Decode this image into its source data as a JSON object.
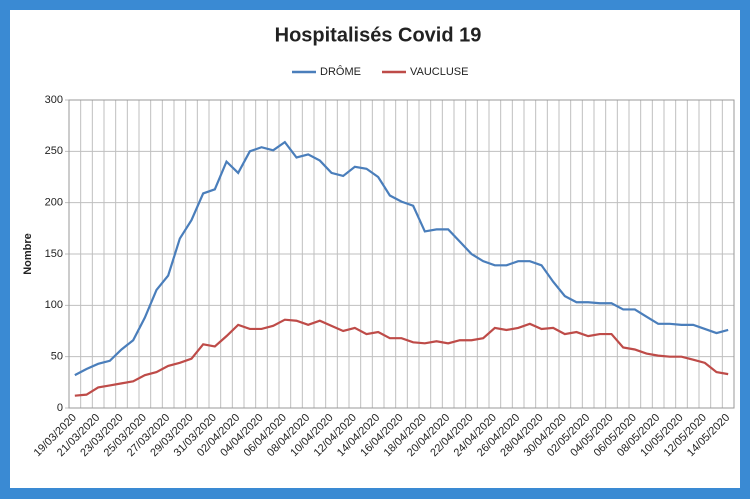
{
  "chart_data": {
    "type": "line",
    "title": "Hospitalisés Covid 19",
    "y_label": "Nombre",
    "categories": [
      "19/03/2020",
      null,
      "21/03/2020",
      null,
      "23/03/2020",
      null,
      "25/03/2020",
      null,
      "27/03/2020",
      null,
      "29/03/2020",
      null,
      "31/03/2020",
      null,
      "02/04/2020",
      null,
      "04/04/2020",
      null,
      "06/04/2020",
      null,
      "08/04/2020",
      null,
      "10/04/2020",
      null,
      "12/04/2020",
      null,
      "14/04/2020",
      null,
      "16/04/2020",
      null,
      "18/04/2020",
      null,
      "20/04/2020",
      null,
      "22/04/2020",
      null,
      "24/04/2020",
      null,
      "26/04/2020",
      null,
      "28/04/2020",
      null,
      "30/04/2020",
      null,
      "02/05/2020",
      null,
      "04/05/2020",
      null,
      "06/05/2020",
      null,
      "08/05/2020",
      null,
      "10/05/2020",
      null,
      "12/05/2020",
      null,
      "14/05/2020"
    ],
    "series": [
      {
        "name": "DRÔME",
        "color": "#4a7ebb",
        "values": [
          32,
          38,
          43,
          46,
          57,
          66,
          88,
          115,
          129,
          165,
          183,
          209,
          213,
          240,
          229,
          250,
          254,
          251,
          259,
          244,
          247,
          241,
          229,
          226,
          235,
          233,
          225,
          207,
          201,
          197,
          172,
          174,
          174,
          162,
          150,
          143,
          139,
          139,
          143,
          143,
          139,
          123,
          109,
          103,
          103,
          102,
          102,
          96,
          96,
          89,
          82,
          82,
          81,
          81,
          77,
          73,
          76
        ]
      },
      {
        "name": "VAUCLUSE",
        "color": "#be4b48",
        "values": [
          12,
          13,
          20,
          22,
          24,
          26,
          32,
          35,
          41,
          44,
          48,
          62,
          60,
          70,
          81,
          77,
          77,
          80,
          86,
          85,
          81,
          85,
          80,
          75,
          78,
          72,
          74,
          68,
          68,
          64,
          63,
          65,
          63,
          66,
          66,
          68,
          78,
          76,
          78,
          82,
          77,
          78,
          72,
          74,
          70,
          72,
          72,
          59,
          57,
          53,
          51,
          50,
          50,
          47,
          44,
          35,
          33
        ]
      }
    ],
    "ylim": [
      0,
      300
    ],
    "yticks": [
      0,
      50,
      100,
      150,
      200,
      250,
      300
    ],
    "grid": true,
    "legend": "top"
  }
}
